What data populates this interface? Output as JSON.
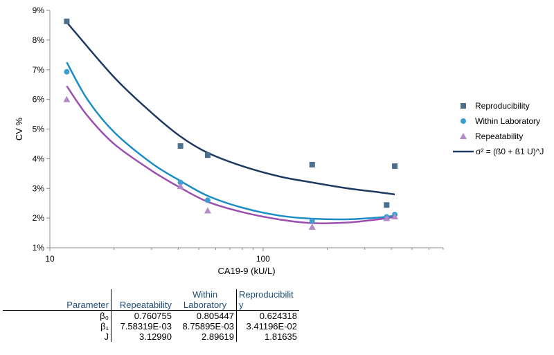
{
  "chart_data": {
    "type": "scatter",
    "xlabel": "CA19-9 (kU/L)",
    "ylabel": "CV %",
    "xscale": "log",
    "xlim": [
      10,
      700
    ],
    "xticks": [
      10,
      100
    ],
    "xtick_labels": [
      "10",
      "100"
    ],
    "ylim": [
      1,
      9
    ],
    "yticks": [
      1,
      2,
      3,
      4,
      5,
      6,
      7,
      8,
      9
    ],
    "ytick_labels": [
      "1%",
      "2%",
      "3%",
      "4%",
      "5%",
      "6%",
      "7%",
      "8%",
      "9%"
    ],
    "grid": false,
    "legend": "right",
    "series": [
      {
        "name": "Reproducibility",
        "marker": "square",
        "color": "#4a6f8f",
        "points": [
          [
            12,
            8.63
          ],
          [
            41,
            4.43
          ],
          [
            55,
            4.12
          ],
          [
            170,
            3.8
          ],
          [
            380,
            2.44
          ],
          [
            415,
            3.75
          ]
        ]
      },
      {
        "name": "Within Laboratory",
        "marker": "circle",
        "color": "#3d9fd0",
        "points": [
          [
            12,
            6.93
          ],
          [
            41,
            3.2
          ],
          [
            55,
            2.6
          ],
          [
            170,
            1.9
          ],
          [
            380,
            2.04
          ],
          [
            415,
            2.12
          ]
        ]
      },
      {
        "name": "Repeatability",
        "marker": "triangle",
        "color": "#b48ac9",
        "points": [
          [
            12,
            6.0
          ],
          [
            41,
            3.07
          ],
          [
            55,
            2.25
          ],
          [
            170,
            1.7
          ],
          [
            380,
            1.99
          ],
          [
            415,
            2.05
          ]
        ]
      }
    ],
    "curves": [
      {
        "name": "σ² = (ß0 + ß1 U)^J",
        "color": "#1f3a60",
        "points": [
          [
            12,
            8.6
          ],
          [
            20,
            6.75
          ],
          [
            30,
            5.55
          ],
          [
            41,
            4.75
          ],
          [
            55,
            4.2
          ],
          [
            80,
            3.75
          ],
          [
            120,
            3.4
          ],
          [
            170,
            3.2
          ],
          [
            250,
            3.0
          ],
          [
            350,
            2.87
          ],
          [
            415,
            2.8
          ]
        ]
      },
      {
        "name": "",
        "color": "#1a8cc6",
        "points": [
          [
            12,
            7.25
          ],
          [
            15,
            6.0
          ],
          [
            20,
            4.9
          ],
          [
            30,
            3.85
          ],
          [
            41,
            3.25
          ],
          [
            55,
            2.75
          ],
          [
            80,
            2.35
          ],
          [
            120,
            2.08
          ],
          [
            170,
            1.98
          ],
          [
            250,
            1.96
          ],
          [
            350,
            2.02
          ],
          [
            415,
            2.08
          ]
        ]
      },
      {
        "name": "",
        "color": "#9b4fb0",
        "points": [
          [
            12,
            6.45
          ],
          [
            15,
            5.45
          ],
          [
            20,
            4.5
          ],
          [
            30,
            3.6
          ],
          [
            41,
            3.02
          ],
          [
            55,
            2.55
          ],
          [
            80,
            2.2
          ],
          [
            120,
            1.95
          ],
          [
            170,
            1.83
          ],
          [
            250,
            1.85
          ],
          [
            350,
            1.96
          ],
          [
            415,
            2.04
          ]
        ]
      }
    ],
    "legend_entries": [
      "Reproducibility",
      "Within Laboratory",
      "Repeatability",
      "σ² = (ß0 + ß1 U)^J"
    ]
  },
  "table": {
    "headers": {
      "parameter": "Parameter",
      "repeatability": "Repeatability",
      "within": "Within Laboratory",
      "reproducibility": "Reproducibility"
    },
    "rows": [
      {
        "param": "β₀",
        "repeatability": "0.760755",
        "within": "0.805447",
        "reproducibility": "0.624318"
      },
      {
        "param": "β₁",
        "repeatability": "7.58319E-03",
        "within": "8.75895E-03",
        "reproducibility": "3.41196E-02"
      },
      {
        "param": "J",
        "repeatability": "3.12990",
        "within": "2.89619",
        "reproducibility": "1.81635"
      }
    ]
  }
}
